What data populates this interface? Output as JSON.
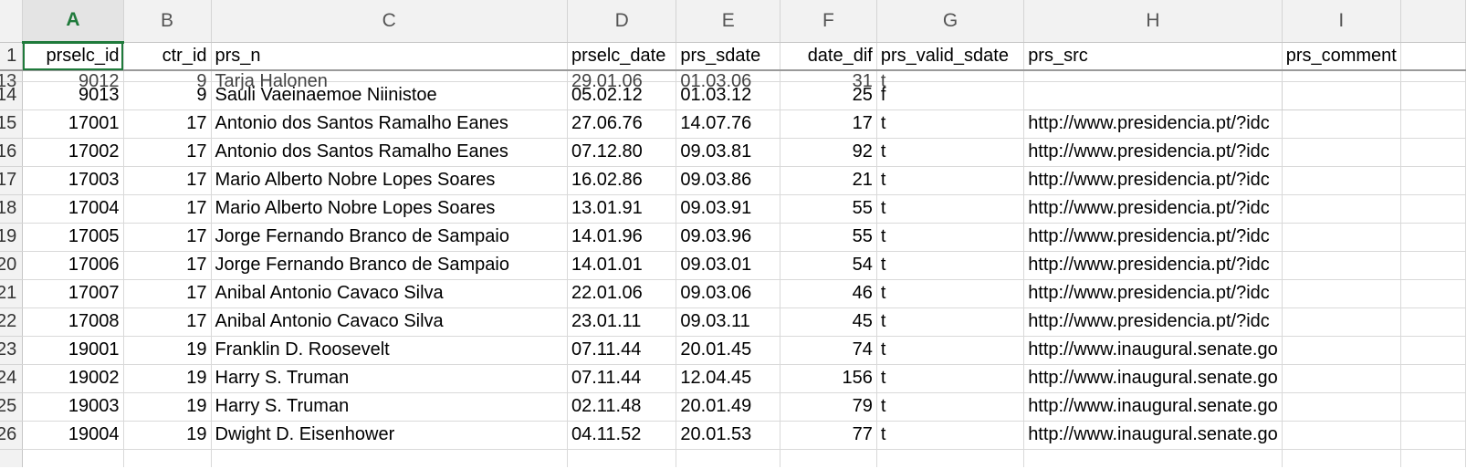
{
  "columns": [
    "A",
    "B",
    "C",
    "D",
    "E",
    "F",
    "G",
    "H",
    "I",
    ""
  ],
  "active_column": "A",
  "header_row": {
    "row_number": "1",
    "cells": [
      "prselc_id",
      "ctr_id",
      "prs_n",
      "prselc_date",
      "prs_sdate",
      "date_dif",
      "prs_valid_sdate",
      "prs_src",
      "prs_comment",
      ""
    ]
  },
  "peek_row": {
    "row_number": "13",
    "cells": [
      "9012",
      "9",
      "Tarja Halonen",
      "29.01.06",
      "01.03.06",
      "31",
      "t",
      "",
      "",
      ""
    ]
  },
  "rows": [
    {
      "row_number": "14",
      "cells": [
        "9013",
        "9",
        "Sauli Vaeinaemoe Niinistoe",
        "05.02.12",
        "01.03.12",
        "25",
        "f",
        "",
        "",
        ""
      ]
    },
    {
      "row_number": "15",
      "cells": [
        "17001",
        "17",
        "Antonio dos Santos Ramalho Eanes",
        "27.06.76",
        "14.07.76",
        "17",
        "t",
        "http://www.presidencia.pt/?idc",
        "",
        ""
      ]
    },
    {
      "row_number": "16",
      "cells": [
        "17002",
        "17",
        "Antonio dos Santos Ramalho Eanes",
        "07.12.80",
        "09.03.81",
        "92",
        "t",
        "http://www.presidencia.pt/?idc",
        "",
        ""
      ]
    },
    {
      "row_number": "17",
      "cells": [
        "17003",
        "17",
        "Mario Alberto Nobre Lopes Soares",
        "16.02.86",
        "09.03.86",
        "21",
        "t",
        "http://www.presidencia.pt/?idc",
        "",
        ""
      ]
    },
    {
      "row_number": "18",
      "cells": [
        "17004",
        "17",
        "Mario Alberto Nobre Lopes Soares",
        "13.01.91",
        "09.03.91",
        "55",
        "t",
        "http://www.presidencia.pt/?idc",
        "",
        ""
      ]
    },
    {
      "row_number": "19",
      "cells": [
        "17005",
        "17",
        "Jorge Fernando Branco de Sampaio",
        "14.01.96",
        "09.03.96",
        "55",
        "t",
        "http://www.presidencia.pt/?idc",
        "",
        ""
      ]
    },
    {
      "row_number": "20",
      "cells": [
        "17006",
        "17",
        "Jorge Fernando Branco de Sampaio",
        "14.01.01",
        "09.03.01",
        "54",
        "t",
        "http://www.presidencia.pt/?idc",
        "",
        ""
      ]
    },
    {
      "row_number": "21",
      "cells": [
        "17007",
        "17",
        "Anibal Antonio Cavaco Silva",
        "22.01.06",
        "09.03.06",
        "46",
        "t",
        "http://www.presidencia.pt/?idc",
        "",
        ""
      ]
    },
    {
      "row_number": "22",
      "cells": [
        "17008",
        "17",
        "Anibal Antonio Cavaco Silva",
        "23.01.11",
        "09.03.11",
        "45",
        "t",
        "http://www.presidencia.pt/?idc",
        "",
        ""
      ]
    },
    {
      "row_number": "23",
      "cells": [
        "19001",
        "19",
        "Franklin D. Roosevelt",
        "07.11.44",
        "20.01.45",
        "74",
        "t",
        "http://www.inaugural.senate.go",
        "",
        ""
      ]
    },
    {
      "row_number": "24",
      "cells": [
        "19002",
        "19",
        "Harry S. Truman",
        "07.11.44",
        "12.04.45",
        "156",
        "t",
        "http://www.inaugural.senate.go",
        "",
        ""
      ]
    },
    {
      "row_number": "25",
      "cells": [
        "19003",
        "19",
        "Harry S. Truman",
        "02.11.48",
        "20.01.49",
        "79",
        "t",
        "http://www.inaugural.senate.go",
        "",
        ""
      ]
    },
    {
      "row_number": "26",
      "cells": [
        "19004",
        "19",
        "Dwight D. Eisenhower",
        "04.11.52",
        "20.01.53",
        "77",
        "t",
        "http://www.inaugural.senate.go",
        "",
        ""
      ]
    }
  ]
}
